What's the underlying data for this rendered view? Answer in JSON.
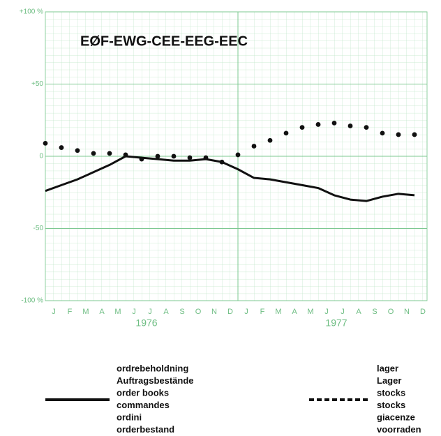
{
  "chart_data": {
    "type": "line",
    "title": "EØF-EWG-CEE-EEG-EEC",
    "categories": [
      "J",
      "F",
      "M",
      "A",
      "M",
      "J",
      "J",
      "A",
      "S",
      "O",
      "N",
      "D",
      "J",
      "F",
      "M",
      "A",
      "M",
      "J",
      "J",
      "A",
      "S",
      "O",
      "N",
      "D"
    ],
    "x_groups": [
      "1976",
      "1977"
    ],
    "ylim": [
      -100,
      100
    ],
    "yticks": [
      {
        "value": 100,
        "label": "+100 %"
      },
      {
        "value": 50,
        "label": "+50"
      },
      0,
      -50,
      {
        "value": -100,
        "label": "-100 %"
      }
    ],
    "grid": true,
    "series": [
      {
        "name": "order books",
        "style": "solid",
        "color": "#111111",
        "legend_labels": [
          "ordrebeholdning",
          "Auftragsbestände",
          "order books",
          "commandes",
          "ordini",
          "orderbestand"
        ],
        "values": [
          -24,
          -20,
          -16,
          -11,
          -6,
          0,
          -1,
          -2,
          -3,
          -3,
          -2,
          -4,
          -9,
          -15,
          -16,
          -18,
          -20,
          -22,
          -27,
          -30,
          -31,
          -28,
          -26,
          -27
        ]
      },
      {
        "name": "stocks",
        "style": "dotted",
        "color": "#111111",
        "legend_labels": [
          "lager",
          "Lager",
          "stocks",
          "stocks",
          "giacenze",
          "voorraden"
        ],
        "values": [
          9,
          6,
          4,
          2,
          2,
          1,
          -2,
          0,
          0,
          -1,
          -1,
          -4,
          1,
          7,
          11,
          16,
          20,
          22,
          23,
          21,
          20,
          16,
          15,
          15
        ]
      }
    ]
  }
}
